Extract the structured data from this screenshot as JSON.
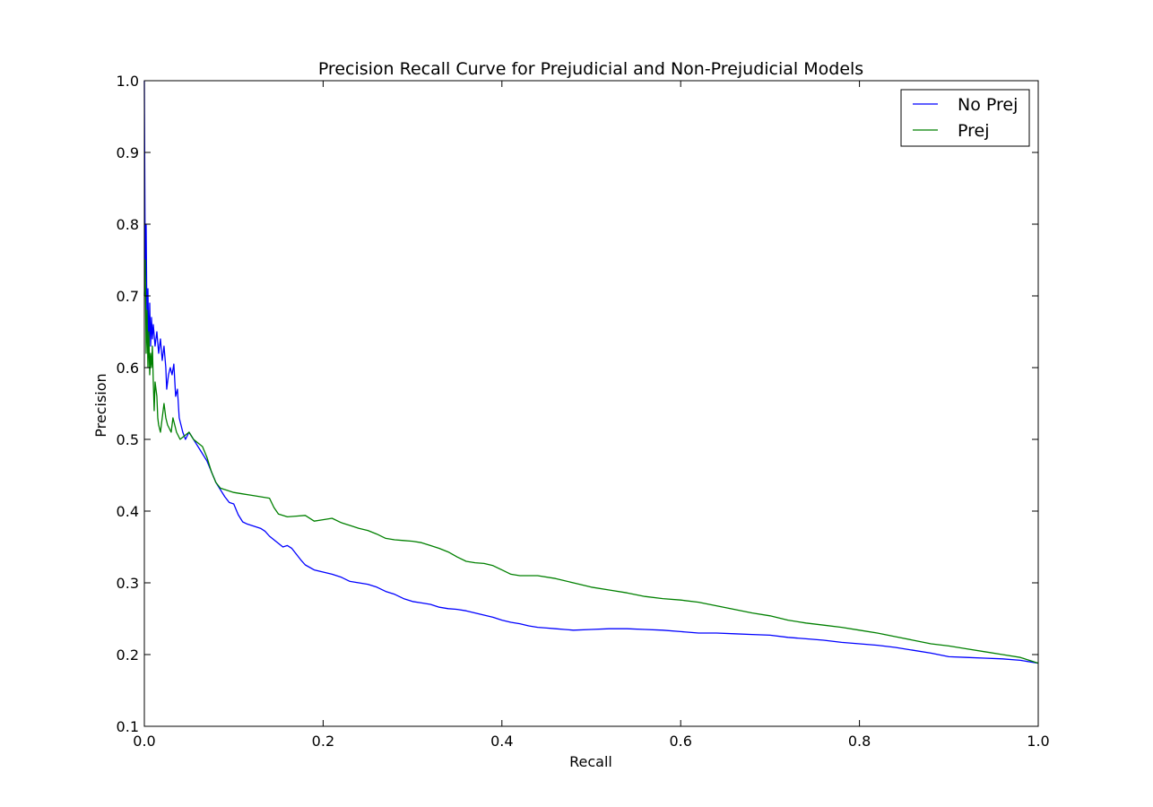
{
  "chart_data": {
    "type": "line",
    "title": "Precision Recall Curve for Prejudicial and Non-Prejudicial Models",
    "xlabel": "Recall",
    "ylabel": "Precision",
    "xlim": [
      0.0,
      1.0
    ],
    "ylim": [
      0.1,
      1.0
    ],
    "xticks": [
      "0.0",
      "0.2",
      "0.4",
      "0.6",
      "0.8",
      "1.0"
    ],
    "yticks": [
      "0.1",
      "0.2",
      "0.3",
      "0.4",
      "0.5",
      "0.6",
      "0.7",
      "0.8",
      "0.9",
      "1.0"
    ],
    "grid": false,
    "legend_position": "top-right",
    "series": [
      {
        "name": "No Prej",
        "color": "#0000ff",
        "points": [
          [
            0.0,
            1.0
          ],
          [
            0.001,
            0.72
          ],
          [
            0.002,
            0.8
          ],
          [
            0.003,
            0.65
          ],
          [
            0.004,
            0.71
          ],
          [
            0.005,
            0.62
          ],
          [
            0.006,
            0.69
          ],
          [
            0.007,
            0.63
          ],
          [
            0.008,
            0.67
          ],
          [
            0.009,
            0.64
          ],
          [
            0.01,
            0.66
          ],
          [
            0.012,
            0.63
          ],
          [
            0.014,
            0.65
          ],
          [
            0.016,
            0.62
          ],
          [
            0.018,
            0.64
          ],
          [
            0.02,
            0.61
          ],
          [
            0.022,
            0.63
          ],
          [
            0.024,
            0.6
          ],
          [
            0.025,
            0.57
          ],
          [
            0.027,
            0.59
          ],
          [
            0.029,
            0.6
          ],
          [
            0.031,
            0.59
          ],
          [
            0.033,
            0.605
          ],
          [
            0.035,
            0.56
          ],
          [
            0.037,
            0.57
          ],
          [
            0.039,
            0.53
          ],
          [
            0.041,
            0.52
          ],
          [
            0.043,
            0.51
          ],
          [
            0.046,
            0.5
          ],
          [
            0.05,
            0.51
          ],
          [
            0.055,
            0.5
          ],
          [
            0.06,
            0.49
          ],
          [
            0.065,
            0.48
          ],
          [
            0.07,
            0.47
          ],
          [
            0.075,
            0.455
          ],
          [
            0.08,
            0.44
          ],
          [
            0.085,
            0.43
          ],
          [
            0.09,
            0.42
          ],
          [
            0.095,
            0.412
          ],
          [
            0.1,
            0.41
          ],
          [
            0.105,
            0.395
          ],
          [
            0.11,
            0.385
          ],
          [
            0.115,
            0.382
          ],
          [
            0.12,
            0.38
          ],
          [
            0.125,
            0.378
          ],
          [
            0.13,
            0.376
          ],
          [
            0.135,
            0.372
          ],
          [
            0.14,
            0.365
          ],
          [
            0.145,
            0.36
          ],
          [
            0.15,
            0.355
          ],
          [
            0.155,
            0.35
          ],
          [
            0.16,
            0.352
          ],
          [
            0.165,
            0.348
          ],
          [
            0.17,
            0.34
          ],
          [
            0.175,
            0.332
          ],
          [
            0.18,
            0.325
          ],
          [
            0.19,
            0.318
          ],
          [
            0.2,
            0.315
          ],
          [
            0.21,
            0.312
          ],
          [
            0.22,
            0.308
          ],
          [
            0.23,
            0.302
          ],
          [
            0.24,
            0.3
          ],
          [
            0.25,
            0.298
          ],
          [
            0.26,
            0.294
          ],
          [
            0.27,
            0.288
          ],
          [
            0.28,
            0.284
          ],
          [
            0.29,
            0.278
          ],
          [
            0.3,
            0.274
          ],
          [
            0.31,
            0.272
          ],
          [
            0.32,
            0.27
          ],
          [
            0.33,
            0.266
          ],
          [
            0.34,
            0.264
          ],
          [
            0.35,
            0.263
          ],
          [
            0.36,
            0.261
          ],
          [
            0.37,
            0.258
          ],
          [
            0.38,
            0.255
          ],
          [
            0.39,
            0.252
          ],
          [
            0.4,
            0.248
          ],
          [
            0.41,
            0.245
          ],
          [
            0.42,
            0.243
          ],
          [
            0.43,
            0.24
          ],
          [
            0.44,
            0.238
          ],
          [
            0.45,
            0.237
          ],
          [
            0.46,
            0.236
          ],
          [
            0.47,
            0.235
          ],
          [
            0.48,
            0.234
          ],
          [
            0.5,
            0.235
          ],
          [
            0.52,
            0.236
          ],
          [
            0.54,
            0.236
          ],
          [
            0.56,
            0.235
          ],
          [
            0.58,
            0.234
          ],
          [
            0.6,
            0.232
          ],
          [
            0.62,
            0.23
          ],
          [
            0.64,
            0.23
          ],
          [
            0.66,
            0.229
          ],
          [
            0.68,
            0.228
          ],
          [
            0.7,
            0.227
          ],
          [
            0.72,
            0.224
          ],
          [
            0.74,
            0.222
          ],
          [
            0.76,
            0.22
          ],
          [
            0.78,
            0.217
          ],
          [
            0.8,
            0.215
          ],
          [
            0.82,
            0.213
          ],
          [
            0.84,
            0.21
          ],
          [
            0.86,
            0.206
          ],
          [
            0.88,
            0.202
          ],
          [
            0.9,
            0.197
          ],
          [
            0.92,
            0.196
          ],
          [
            0.94,
            0.195
          ],
          [
            0.96,
            0.194
          ],
          [
            0.98,
            0.192
          ],
          [
            1.0,
            0.188
          ]
        ]
      },
      {
        "name": "Prej",
        "color": "#008000",
        "points": [
          [
            0.0,
            0.7
          ],
          [
            0.001,
            0.75
          ],
          [
            0.002,
            0.62
          ],
          [
            0.003,
            0.68
          ],
          [
            0.004,
            0.6
          ],
          [
            0.005,
            0.65
          ],
          [
            0.006,
            0.59
          ],
          [
            0.007,
            0.62
          ],
          [
            0.008,
            0.6
          ],
          [
            0.009,
            0.63
          ],
          [
            0.01,
            0.58
          ],
          [
            0.011,
            0.54
          ],
          [
            0.012,
            0.58
          ],
          [
            0.013,
            0.57
          ],
          [
            0.014,
            0.56
          ],
          [
            0.015,
            0.53
          ],
          [
            0.016,
            0.52
          ],
          [
            0.018,
            0.51
          ],
          [
            0.02,
            0.53
          ],
          [
            0.022,
            0.55
          ],
          [
            0.024,
            0.53
          ],
          [
            0.026,
            0.52
          ],
          [
            0.028,
            0.515
          ],
          [
            0.03,
            0.51
          ],
          [
            0.032,
            0.53
          ],
          [
            0.034,
            0.52
          ],
          [
            0.036,
            0.51
          ],
          [
            0.04,
            0.5
          ],
          [
            0.045,
            0.505
          ],
          [
            0.05,
            0.51
          ],
          [
            0.055,
            0.5
          ],
          [
            0.06,
            0.495
          ],
          [
            0.065,
            0.49
          ],
          [
            0.07,
            0.475
          ],
          [
            0.075,
            0.455
          ],
          [
            0.08,
            0.44
          ],
          [
            0.085,
            0.432
          ],
          [
            0.09,
            0.43
          ],
          [
            0.095,
            0.428
          ],
          [
            0.1,
            0.426
          ],
          [
            0.11,
            0.424
          ],
          [
            0.12,
            0.422
          ],
          [
            0.13,
            0.42
          ],
          [
            0.14,
            0.418
          ],
          [
            0.145,
            0.405
          ],
          [
            0.15,
            0.396
          ],
          [
            0.16,
            0.392
          ],
          [
            0.17,
            0.393
          ],
          [
            0.18,
            0.394
          ],
          [
            0.19,
            0.386
          ],
          [
            0.2,
            0.388
          ],
          [
            0.21,
            0.39
          ],
          [
            0.22,
            0.384
          ],
          [
            0.23,
            0.38
          ],
          [
            0.24,
            0.376
          ],
          [
            0.25,
            0.373
          ],
          [
            0.26,
            0.368
          ],
          [
            0.27,
            0.362
          ],
          [
            0.28,
            0.36
          ],
          [
            0.29,
            0.359
          ],
          [
            0.3,
            0.358
          ],
          [
            0.31,
            0.356
          ],
          [
            0.32,
            0.352
          ],
          [
            0.33,
            0.348
          ],
          [
            0.34,
            0.343
          ],
          [
            0.35,
            0.336
          ],
          [
            0.36,
            0.33
          ],
          [
            0.37,
            0.328
          ],
          [
            0.38,
            0.327
          ],
          [
            0.39,
            0.324
          ],
          [
            0.4,
            0.318
          ],
          [
            0.41,
            0.312
          ],
          [
            0.42,
            0.31
          ],
          [
            0.44,
            0.31
          ],
          [
            0.46,
            0.306
          ],
          [
            0.48,
            0.3
          ],
          [
            0.5,
            0.294
          ],
          [
            0.52,
            0.29
          ],
          [
            0.54,
            0.286
          ],
          [
            0.56,
            0.281
          ],
          [
            0.58,
            0.278
          ],
          [
            0.6,
            0.276
          ],
          [
            0.62,
            0.273
          ],
          [
            0.64,
            0.268
          ],
          [
            0.66,
            0.263
          ],
          [
            0.68,
            0.258
          ],
          [
            0.7,
            0.254
          ],
          [
            0.72,
            0.248
          ],
          [
            0.74,
            0.244
          ],
          [
            0.76,
            0.241
          ],
          [
            0.78,
            0.238
          ],
          [
            0.8,
            0.234
          ],
          [
            0.82,
            0.23
          ],
          [
            0.84,
            0.225
          ],
          [
            0.86,
            0.22
          ],
          [
            0.88,
            0.215
          ],
          [
            0.9,
            0.212
          ],
          [
            0.92,
            0.208
          ],
          [
            0.94,
            0.204
          ],
          [
            0.96,
            0.2
          ],
          [
            0.98,
            0.196
          ],
          [
            1.0,
            0.188
          ]
        ]
      }
    ]
  }
}
